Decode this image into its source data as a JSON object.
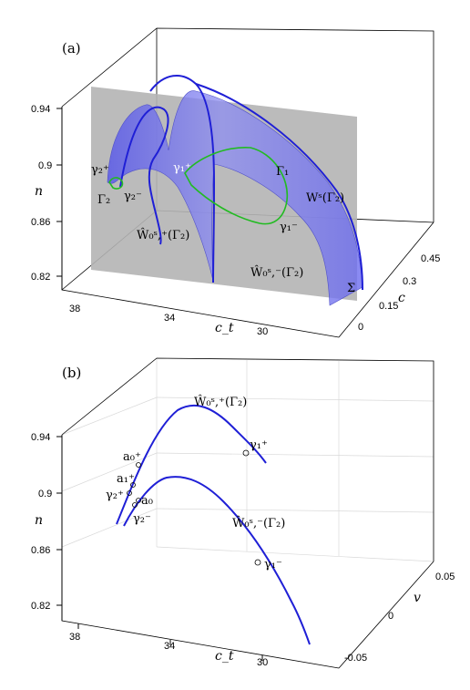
{
  "panel_a": {
    "label": "(a)",
    "ylabel": "n",
    "xlabel": "c_t",
    "zlabel": "c",
    "yticks": [
      "0.94",
      "0.9",
      "0.86",
      "0.82"
    ],
    "xticks": [
      "38",
      "34",
      "30"
    ],
    "zticks": [
      "0.45",
      "0.3",
      "0.15",
      "0"
    ],
    "section_label": "Σ",
    "annotations": {
      "gamma2_plus": "γ₂⁺",
      "gamma2_minus": "γ₂⁻",
      "Gamma2": "Γ₂",
      "gamma1_plus": "γ₁⁺",
      "gamma1_minus": "γ₁⁻",
      "Gamma1": "Γ₁",
      "Ws_Gamma2": "Wˢ(Γ₂)",
      "W0_plus": "Ŵ₀ˢ,⁺(Γ₂)",
      "W0_minus": "Ŵ₀ˢ,⁻(Γ₂)"
    },
    "colors": {
      "surface": "#6a6af0",
      "curve": "#1f1fd6",
      "plane": "#b0b0b0",
      "orbit": "#22bb22"
    }
  },
  "panel_b": {
    "label": "(b)",
    "ylabel": "n",
    "xlabel": "c_t",
    "zlabel": "v",
    "yticks": [
      "0.94",
      "0.9",
      "0.86",
      "0.82"
    ],
    "xticks": [
      "38",
      "34",
      "30"
    ],
    "zticks": [
      "0.05",
      "0",
      "-0.05"
    ],
    "annotations": {
      "W0_plus": "Ŵ₀ˢ,⁺(Γ₂)",
      "W0_minus": "Ŵ₀ˢ,⁻(Γ₂)",
      "gamma1_plus": "γ₁⁺",
      "gamma1_minus": "γ₁⁻",
      "a0_plus": "a₀⁺",
      "a1_plus": "a₁⁺",
      "gamma2_plus": "γ₂⁺",
      "a0": "a₀",
      "gamma2_minus": "γ₂⁻"
    },
    "colors": {
      "curve": "#1f1fd6"
    }
  }
}
